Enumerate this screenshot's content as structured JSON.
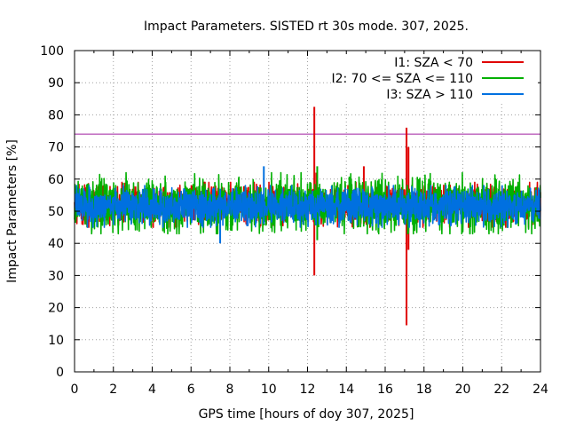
{
  "chart_data": {
    "type": "line",
    "title": "Impact Parameters. SISTED rt 30s mode. 307, 2025.",
    "xlabel": "GPS time [hours of doy 307, 2025]",
    "ylabel": "Impact Parameters [%]",
    "xlim": [
      0,
      24
    ],
    "ylim": [
      0,
      100
    ],
    "xticks": [
      0,
      2,
      4,
      6,
      8,
      10,
      12,
      14,
      16,
      18,
      20,
      22,
      24
    ],
    "yticks": [
      0,
      10,
      20,
      30,
      40,
      50,
      60,
      70,
      80,
      90,
      100
    ],
    "grid": true,
    "legend_position": "top-right",
    "threshold": {
      "value": 74,
      "color": "#a020a0"
    },
    "series": [
      {
        "name": "I1: SZA < 70",
        "color": "#e00000",
        "mean": 52,
        "typical_range": [
          45,
          59
        ],
        "spikes": [
          {
            "x": 12.35,
            "low": 30,
            "high": 82.5
          },
          {
            "x": 12.45,
            "low": 48,
            "high": 62
          },
          {
            "x": 14.9,
            "low": 46,
            "high": 64
          },
          {
            "x": 17.1,
            "low": 14.5,
            "high": 76
          },
          {
            "x": 17.2,
            "low": 38,
            "high": 70
          }
        ]
      },
      {
        "name": "I2: 70 <= SZA <= 110",
        "color": "#00b000",
        "mean": 52,
        "typical_range": [
          43,
          62
        ],
        "spikes": [
          {
            "x": 12.5,
            "low": 41,
            "high": 64
          }
        ]
      },
      {
        "name": "I3: SZA > 110",
        "color": "#0070e0",
        "mean": 51.5,
        "typical_range": [
          45,
          58
        ],
        "spikes": [
          {
            "x": 7.5,
            "low": 40,
            "high": 57
          },
          {
            "x": 9.75,
            "low": 46,
            "high": 64
          }
        ]
      }
    ]
  }
}
